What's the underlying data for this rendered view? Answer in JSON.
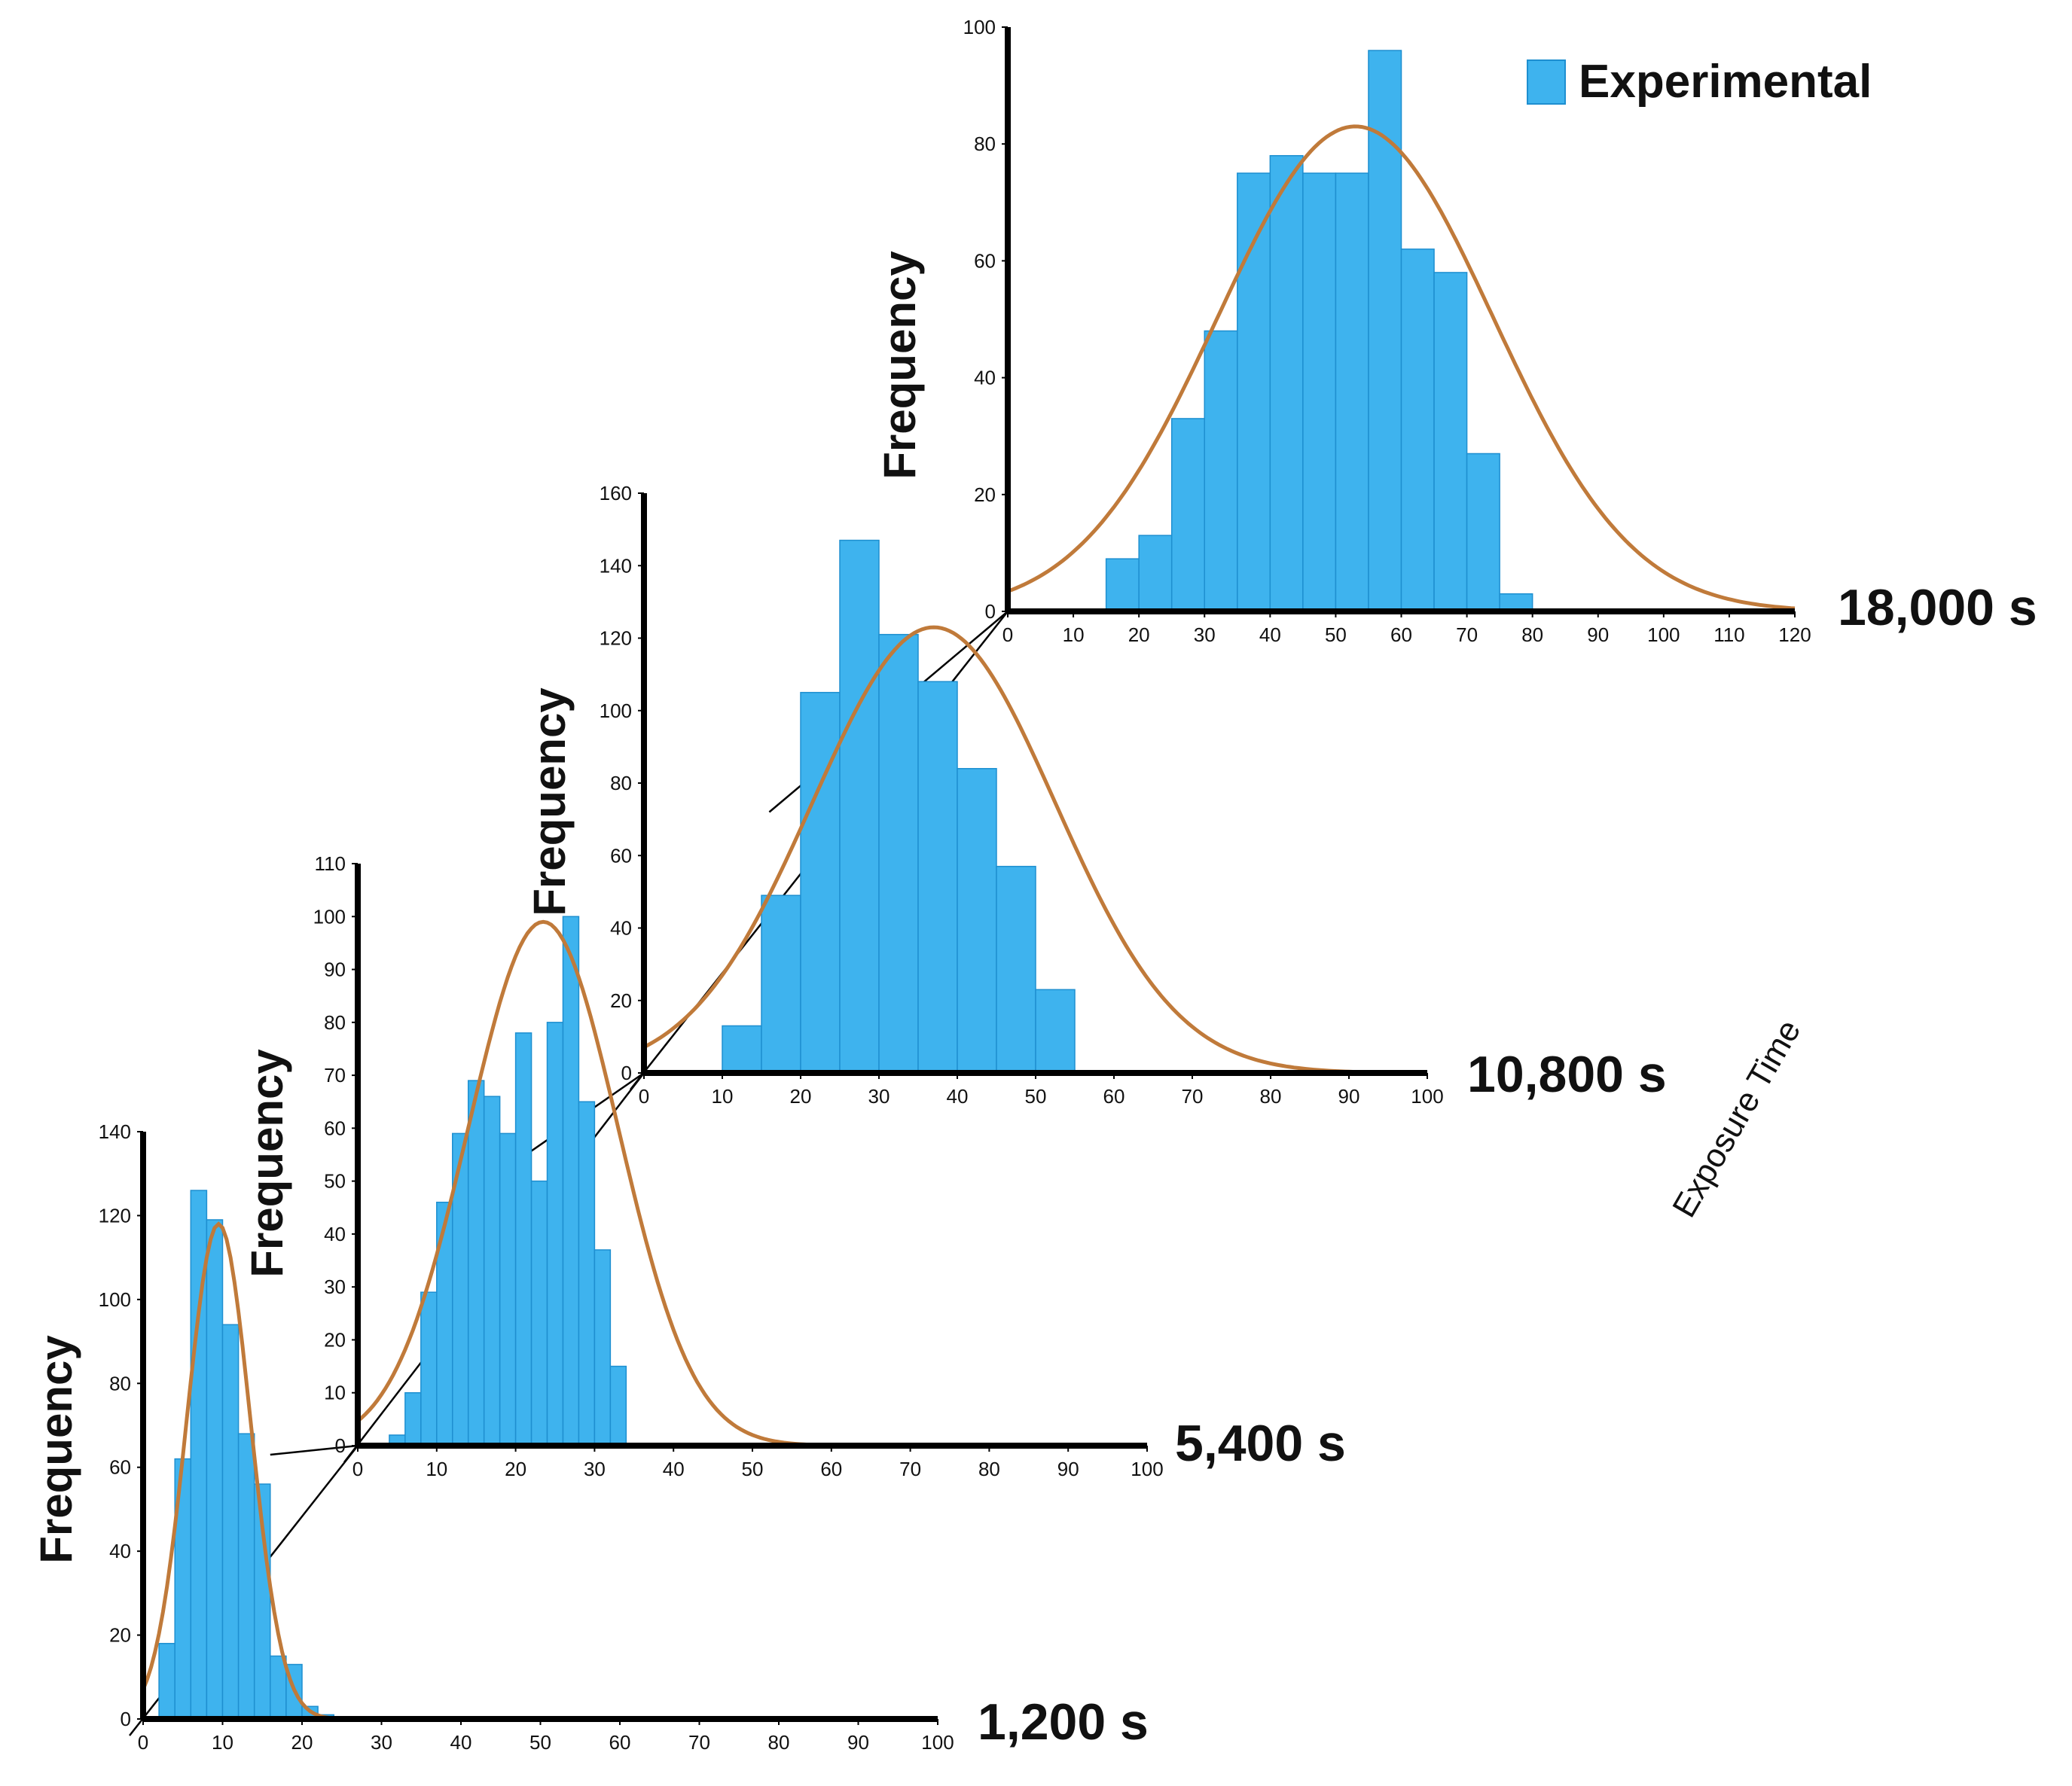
{
  "legend": {
    "label": "Experimental",
    "color": "#3eb3ee"
  },
  "axis_title": "Exposure Time",
  "colors": {
    "bar": "#3eb3ee",
    "bar_edge": "#1e8fd0",
    "fit_curve": "#c07a3a",
    "axis": "#000000"
  },
  "chart_data": [
    {
      "type": "bar",
      "title": "1,200 s",
      "ylabel": "Frequency",
      "xlim": [
        0,
        100
      ],
      "ylim": [
        0,
        140
      ],
      "x_ticks": [
        "0",
        "10",
        "20",
        "30",
        "40",
        "50",
        "60",
        "70",
        "80",
        "90",
        "100"
      ],
      "y_ticks": [
        "0",
        "20",
        "40",
        "60",
        "80",
        "100",
        "120",
        "140"
      ],
      "bin_width": 2,
      "bin_starts": [
        2,
        4,
        6,
        8,
        10,
        12,
        14,
        16,
        18,
        20,
        22
      ],
      "values": [
        18,
        62,
        126,
        119,
        94,
        68,
        56,
        15,
        13,
        3,
        1
      ],
      "fit_curve": {
        "type": "normal",
        "mean": 9.5,
        "sd": 4.0,
        "peak": 118
      }
    },
    {
      "type": "bar",
      "title": "5,400 s",
      "ylabel": "Frequency",
      "xlim": [
        0,
        100
      ],
      "ylim": [
        0,
        110
      ],
      "x_ticks": [
        "0",
        "10",
        "20",
        "30",
        "40",
        "50",
        "60",
        "70",
        "80",
        "90",
        "100"
      ],
      "y_ticks": [
        "0",
        "10",
        "20",
        "30",
        "40",
        "50",
        "60",
        "70",
        "80",
        "90",
        "100",
        "110"
      ],
      "bin_width": 2,
      "bin_starts": [
        4,
        6,
        8,
        10,
        12,
        14,
        16,
        18,
        20,
        22,
        24,
        26,
        28,
        30,
        32
      ],
      "values": [
        2,
        10,
        29,
        46,
        59,
        69,
        66,
        59,
        78,
        50,
        80,
        100,
        65,
        37,
        15
      ],
      "fit_curve": {
        "type": "normal",
        "mean": 23.5,
        "sd": 9.5,
        "peak": 99
      }
    },
    {
      "type": "bar",
      "title": "10,800 s",
      "ylabel": "Frequency",
      "xlim": [
        0,
        100
      ],
      "ylim": [
        0,
        160
      ],
      "x_ticks": [
        "0",
        "10",
        "20",
        "30",
        "40",
        "50",
        "60",
        "70",
        "80",
        "90",
        "100"
      ],
      "y_ticks": [
        "0",
        "20",
        "40",
        "60",
        "80",
        "100",
        "120",
        "140",
        "160"
      ],
      "bin_width": 5,
      "bin_starts": [
        10,
        15,
        20,
        25,
        30,
        35,
        40,
        45,
        50
      ],
      "values": [
        13,
        49,
        105,
        147,
        121,
        108,
        84,
        57,
        23
      ],
      "fit_curve": {
        "type": "normal",
        "mean": 37,
        "sd": 15.5,
        "peak": 123
      }
    },
    {
      "type": "bar",
      "title": "18,000 s",
      "ylabel": "Frequency",
      "xlim": [
        0,
        120
      ],
      "ylim": [
        0,
        100
      ],
      "x_ticks": [
        "0",
        "10",
        "20",
        "30",
        "40",
        "50",
        "60",
        "70",
        "80",
        "90",
        "100",
        "110",
        "120"
      ],
      "y_ticks": [
        "0",
        "20",
        "40",
        "60",
        "80",
        "100"
      ],
      "bin_width": 5,
      "bin_starts": [
        15,
        20,
        25,
        30,
        35,
        40,
        45,
        50,
        55,
        60,
        65,
        70,
        75
      ],
      "values": [
        9,
        13,
        33,
        48,
        75,
        78,
        75,
        75,
        96,
        62,
        58,
        27,
        3
      ],
      "fit_curve": {
        "type": "normal",
        "mean": 53,
        "sd": 21,
        "peak": 83
      }
    }
  ]
}
